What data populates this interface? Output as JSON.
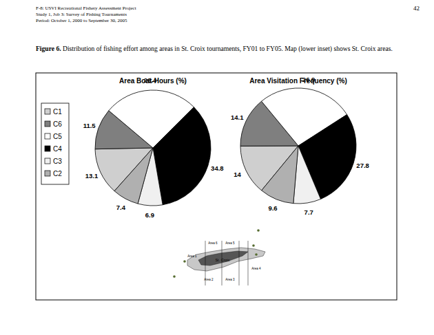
{
  "page": {
    "header": [
      "F-8:  USVI Recreational Fishery Assessment Project",
      "Study 1, Job 3: Survey of Fishing Tournaments",
      "Period:  October 1, 2000 to September 30, 2005"
    ],
    "page_number": "42",
    "caption_label": "Figure 6.",
    "caption": "Distribution of fishing effort among areas in St. Croix tournaments, FY01 to FY05.  Map (lower inset) shows St. Croix areas."
  },
  "chart_data": [
    {
      "type": "pie",
      "title": "Area Boat-Hours (%)",
      "categories": [
        "C1",
        "C6",
        "C5",
        "C4",
        "C3",
        "C2"
      ],
      "values": [
        13.1,
        11.5,
        26.4,
        34.8,
        6.9,
        7.4
      ],
      "colors": [
        "#cfcfcf",
        "#7f7f7f",
        "#ffffff",
        "#000000",
        "#f0f0f0",
        "#b0b0b0"
      ],
      "data_labels": true,
      "legend": "left"
    },
    {
      "type": "pie",
      "title": "Area Visitation Frequency (%)",
      "categories": [
        "C1",
        "C6",
        "C5",
        "C4",
        "C3",
        "C2"
      ],
      "values": [
        14.0,
        14.1,
        26.9,
        27.8,
        7.7,
        9.6
      ],
      "colors": [
        "#cfcfcf",
        "#7f7f7f",
        "#ffffff",
        "#000000",
        "#f0f0f0",
        "#b0b0b0"
      ],
      "data_labels": true
    }
  ],
  "map": {
    "labels": [
      "Area 6",
      "Area 5",
      "Area 1",
      "St. Croix",
      "Area 2",
      "Area 3",
      "Area 4"
    ]
  }
}
